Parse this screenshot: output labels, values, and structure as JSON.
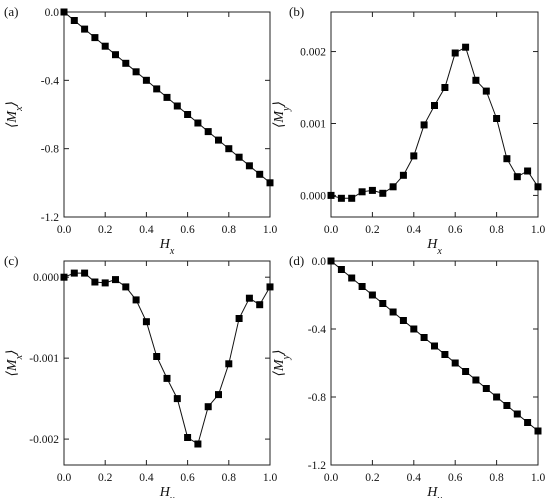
{
  "chart_data": [
    {
      "type": "line",
      "panel_label": "(a)",
      "xlabel": "H_x",
      "ylabel": "⟨M_x⟩",
      "xlim": [
        0.0,
        1.0
      ],
      "ylim": [
        -1.2,
        0.0
      ],
      "xticks": [
        0.0,
        0.2,
        0.4,
        0.6,
        0.8,
        1.0
      ],
      "xtick_labels": [
        "0.0",
        "0.2",
        "0.4",
        "0.6",
        "0.8",
        "1.0"
      ],
      "yticks": [
        0.0,
        -0.4,
        -0.8,
        -1.2
      ],
      "ytick_labels": [
        "0.0",
        "-0.4",
        "-0.8",
        "-1.2"
      ],
      "grid": false,
      "x": [
        0.0,
        0.05,
        0.1,
        0.15,
        0.2,
        0.25,
        0.3,
        0.35,
        0.4,
        0.45,
        0.5,
        0.55,
        0.6,
        0.65,
        0.7,
        0.75,
        0.8,
        0.85,
        0.9,
        0.95,
        1.0
      ],
      "series": [
        {
          "marker": "square",
          "values": [
            0.0,
            -0.05,
            -0.1,
            -0.15,
            -0.2,
            -0.25,
            -0.3,
            -0.35,
            -0.4,
            -0.45,
            -0.5,
            -0.55,
            -0.6,
            -0.65,
            -0.7,
            -0.75,
            -0.8,
            -0.85,
            -0.9,
            -0.95,
            -1.0
          ]
        }
      ]
    },
    {
      "type": "line",
      "panel_label": "(b)",
      "xlabel": "H_x",
      "ylabel": "⟨M_y⟩",
      "xlim": [
        0.0,
        1.0
      ],
      "ylim": [
        -0.0003,
        0.00255
      ],
      "xticks": [
        0.0,
        0.2,
        0.4,
        0.6,
        0.8,
        1.0
      ],
      "xtick_labels": [
        "0.0",
        "0.2",
        "0.4",
        "0.6",
        "0.8",
        "1.0"
      ],
      "yticks": [
        0.0,
        0.001,
        0.002
      ],
      "ytick_labels": [
        "0.000",
        "0.001",
        "0.002"
      ],
      "grid": false,
      "x": [
        0.0,
        0.05,
        0.1,
        0.15,
        0.2,
        0.25,
        0.3,
        0.35,
        0.4,
        0.45,
        0.5,
        0.55,
        0.6,
        0.65,
        0.7,
        0.75,
        0.8,
        0.85,
        0.9,
        0.95,
        1.0
      ],
      "series": [
        {
          "marker": "square",
          "values": [
            0.0,
            -4e-05,
            -4e-05,
            5e-05,
            7e-05,
            3e-05,
            0.00012,
            0.00028,
            0.00055,
            0.00098,
            0.00125,
            0.0015,
            0.00198,
            0.00206,
            0.0016,
            0.00145,
            0.00107,
            0.00051,
            0.00026,
            0.00034,
            0.00012
          ]
        }
      ]
    },
    {
      "type": "line",
      "panel_label": "(c)",
      "xlabel": "H_y",
      "ylabel": "⟨M_x⟩",
      "xlim": [
        0.0,
        1.0
      ],
      "ylim": [
        -0.00232,
        0.0002
      ],
      "xticks": [
        0.0,
        0.2,
        0.4,
        0.6,
        0.8,
        1.0
      ],
      "xtick_labels": [
        "0.0",
        "0.2",
        "0.4",
        "0.6",
        "0.8",
        "1.0"
      ],
      "yticks": [
        0.0,
        -0.001,
        -0.002
      ],
      "ytick_labels": [
        "0.000",
        "-0.001",
        "-0.002"
      ],
      "grid": false,
      "x": [
        0.0,
        0.05,
        0.1,
        0.15,
        0.2,
        0.25,
        0.3,
        0.35,
        0.4,
        0.45,
        0.5,
        0.55,
        0.6,
        0.65,
        0.7,
        0.75,
        0.8,
        0.85,
        0.9,
        0.95,
        1.0
      ],
      "series": [
        {
          "marker": "square",
          "values": [
            0.0,
            5e-05,
            5e-05,
            -6e-05,
            -7e-05,
            -3e-05,
            -0.00012,
            -0.00028,
            -0.00055,
            -0.00098,
            -0.00125,
            -0.0015,
            -0.00198,
            -0.00206,
            -0.0016,
            -0.00145,
            -0.00107,
            -0.00051,
            -0.00026,
            -0.00034,
            -0.00012
          ]
        }
      ]
    },
    {
      "type": "line",
      "panel_label": "(d)",
      "xlabel": "H_y",
      "ylabel": "⟨M_y⟩",
      "xlim": [
        0.0,
        1.0
      ],
      "ylim": [
        -1.2,
        0.0
      ],
      "xticks": [
        0.0,
        0.2,
        0.4,
        0.6,
        0.8,
        1.0
      ],
      "xtick_labels": [
        "0.0",
        "0.2",
        "0.4",
        "0.6",
        "0.8",
        "1.0"
      ],
      "yticks": [
        0.0,
        -0.4,
        -0.8,
        -1.2
      ],
      "ytick_labels": [
        "0.0",
        "-0.4",
        "-0.8",
        "-1.2"
      ],
      "grid": false,
      "x": [
        0.0,
        0.05,
        0.1,
        0.15,
        0.2,
        0.25,
        0.3,
        0.35,
        0.4,
        0.45,
        0.5,
        0.55,
        0.6,
        0.65,
        0.7,
        0.75,
        0.8,
        0.85,
        0.9,
        0.95,
        1.0
      ],
      "series": [
        {
          "marker": "square",
          "values": [
            0.0,
            -0.05,
            -0.1,
            -0.15,
            -0.2,
            -0.25,
            -0.3,
            -0.35,
            -0.4,
            -0.45,
            -0.5,
            -0.55,
            -0.6,
            -0.65,
            -0.7,
            -0.75,
            -0.8,
            -0.85,
            -0.9,
            -0.95,
            -1.0
          ]
        }
      ]
    }
  ]
}
